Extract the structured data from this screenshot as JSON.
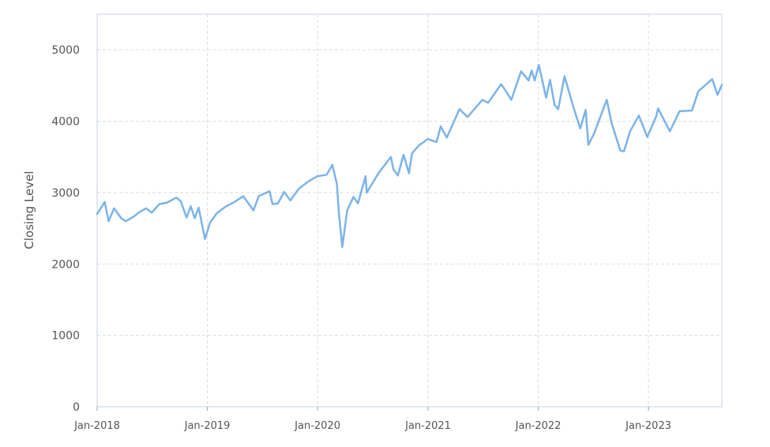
{
  "chart_data": {
    "type": "line",
    "title": "",
    "xlabel": "",
    "ylabel": "Closing Level",
    "xlim": [
      "2018-01-01",
      "2023-09-01"
    ],
    "ylim": [
      0,
      5500
    ],
    "yticks": [
      0,
      1000,
      2000,
      3000,
      4000,
      5000
    ],
    "xticks": [
      {
        "date": "2018-01-01",
        "label": "Jan-2018"
      },
      {
        "date": "2019-01-01",
        "label": "Jan-2019"
      },
      {
        "date": "2020-01-01",
        "label": "Jan-2020"
      },
      {
        "date": "2021-01-01",
        "label": "Jan-2021"
      },
      {
        "date": "2022-01-01",
        "label": "Jan-2022"
      },
      {
        "date": "2023-01-01",
        "label": "Jan-2023"
      }
    ],
    "grid": true,
    "legend": "none",
    "line_color": "#7cb4e8",
    "series": [
      {
        "points": [
          [
            "2018-01-01",
            2700
          ],
          [
            "2018-01-26",
            2870
          ],
          [
            "2018-02-08",
            2600
          ],
          [
            "2018-02-26",
            2780
          ],
          [
            "2018-03-22",
            2640
          ],
          [
            "2018-04-06",
            2600
          ],
          [
            "2018-05-01",
            2660
          ],
          [
            "2018-05-22",
            2730
          ],
          [
            "2018-06-12",
            2780
          ],
          [
            "2018-07-01",
            2720
          ],
          [
            "2018-07-26",
            2840
          ],
          [
            "2018-08-20",
            2860
          ],
          [
            "2018-09-20",
            2930
          ],
          [
            "2018-10-05",
            2880
          ],
          [
            "2018-10-24",
            2650
          ],
          [
            "2018-11-07",
            2810
          ],
          [
            "2018-11-20",
            2640
          ],
          [
            "2018-12-03",
            2790
          ],
          [
            "2018-12-24",
            2350
          ],
          [
            "2019-01-10",
            2580
          ],
          [
            "2019-02-01",
            2710
          ],
          [
            "2019-03-01",
            2800
          ],
          [
            "2019-04-01",
            2870
          ],
          [
            "2019-04-30",
            2950
          ],
          [
            "2019-06-03",
            2750
          ],
          [
            "2019-06-20",
            2950
          ],
          [
            "2019-07-26",
            3020
          ],
          [
            "2019-08-05",
            2840
          ],
          [
            "2019-08-23",
            2850
          ],
          [
            "2019-09-12",
            3010
          ],
          [
            "2019-10-03",
            2890
          ],
          [
            "2019-10-30",
            3050
          ],
          [
            "2019-11-29",
            3150
          ],
          [
            "2019-12-31",
            3230
          ],
          [
            "2020-01-31",
            3250
          ],
          [
            "2020-02-19",
            3390
          ],
          [
            "2020-03-05",
            3120
          ],
          [
            "2020-03-12",
            2700
          ],
          [
            "2020-03-23",
            2240
          ],
          [
            "2020-04-08",
            2750
          ],
          [
            "2020-04-29",
            2940
          ],
          [
            "2020-05-14",
            2850
          ],
          [
            "2020-06-08",
            3230
          ],
          [
            "2020-06-12",
            3000
          ],
          [
            "2020-07-22",
            3280
          ],
          [
            "2020-08-31",
            3500
          ],
          [
            "2020-09-08",
            3330
          ],
          [
            "2020-09-23",
            3240
          ],
          [
            "2020-10-12",
            3530
          ],
          [
            "2020-10-30",
            3270
          ],
          [
            "2020-11-09",
            3550
          ],
          [
            "2020-12-01",
            3660
          ],
          [
            "2020-12-31",
            3750
          ],
          [
            "2021-01-29",
            3710
          ],
          [
            "2021-02-12",
            3930
          ],
          [
            "2021-03-04",
            3770
          ],
          [
            "2021-04-15",
            4170
          ],
          [
            "2021-05-12",
            4060
          ],
          [
            "2021-06-30",
            4300
          ],
          [
            "2021-07-19",
            4260
          ],
          [
            "2021-08-31",
            4520
          ],
          [
            "2021-09-10",
            4460
          ],
          [
            "2021-10-04",
            4300
          ],
          [
            "2021-11-05",
            4700
          ],
          [
            "2021-11-30",
            4570
          ],
          [
            "2021-12-10",
            4710
          ],
          [
            "2021-12-20",
            4570
          ],
          [
            "2022-01-03",
            4790
          ],
          [
            "2022-01-27",
            4330
          ],
          [
            "2022-02-09",
            4580
          ],
          [
            "2022-02-24",
            4230
          ],
          [
            "2022-03-08",
            4170
          ],
          [
            "2022-03-29",
            4630
          ],
          [
            "2022-04-28",
            4190
          ],
          [
            "2022-05-20",
            3900
          ],
          [
            "2022-06-07",
            4160
          ],
          [
            "2022-06-16",
            3670
          ],
          [
            "2022-07-05",
            3830
          ],
          [
            "2022-08-16",
            4300
          ],
          [
            "2022-09-01",
            3970
          ],
          [
            "2022-09-30",
            3590
          ],
          [
            "2022-10-12",
            3580
          ],
          [
            "2022-11-01",
            3860
          ],
          [
            "2022-11-30",
            4080
          ],
          [
            "2022-12-28",
            3780
          ],
          [
            "2023-01-27",
            4070
          ],
          [
            "2023-02-02",
            4180
          ],
          [
            "2023-03-13",
            3860
          ],
          [
            "2023-04-14",
            4140
          ],
          [
            "2023-05-25",
            4150
          ],
          [
            "2023-06-15",
            4420
          ],
          [
            "2023-07-31",
            4590
          ],
          [
            "2023-08-18",
            4370
          ],
          [
            "2023-09-01",
            4510
          ]
        ]
      }
    ]
  }
}
